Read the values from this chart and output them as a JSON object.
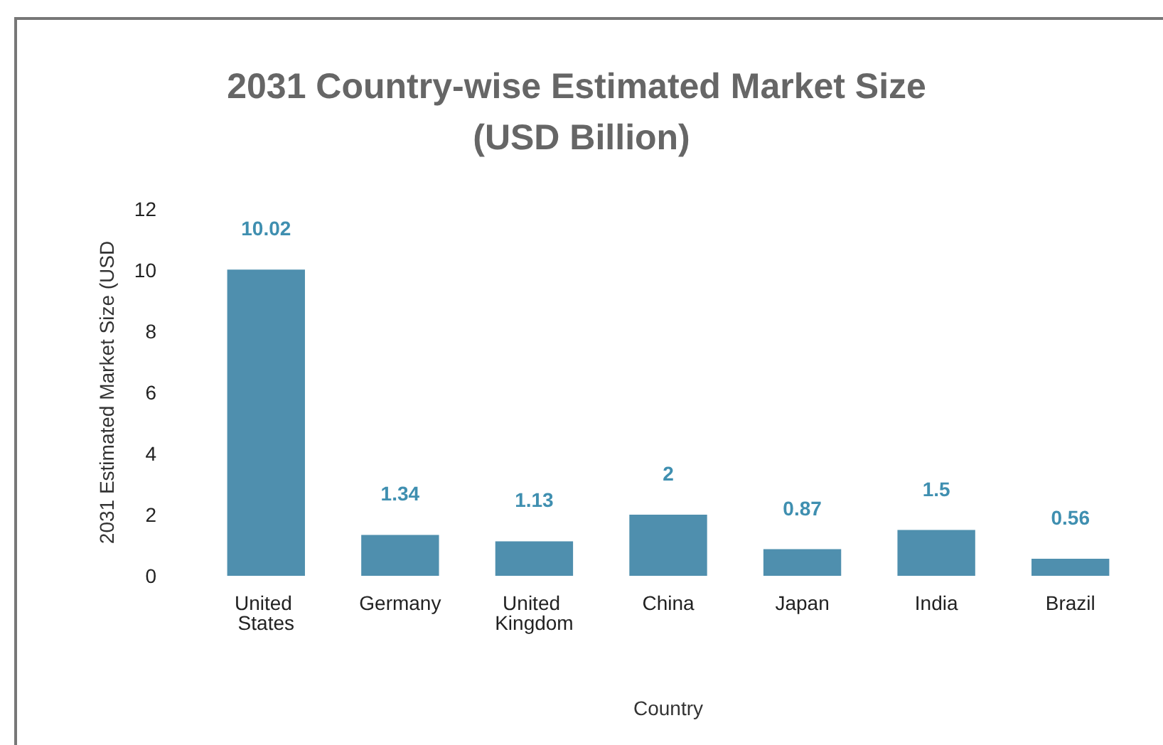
{
  "chart_data": {
    "type": "bar",
    "title": "2031 Country-wise Estimated Market Size (USD Billion)",
    "xlabel": "Country",
    "ylabel": "2031 Estimated Market Size (USD",
    "categories": [
      "United States",
      "Germany",
      "United Kingdom",
      "China",
      "Japan",
      "India",
      "Brazil"
    ],
    "values": [
      10.02,
      1.34,
      1.13,
      2,
      0.87,
      1.5,
      0.56
    ],
    "color": "#4f8fae",
    "ylim": [
      0,
      12
    ],
    "yticks": [
      0,
      2,
      4,
      6,
      8,
      10,
      12
    ],
    "grid": false,
    "data_labels": true
  }
}
